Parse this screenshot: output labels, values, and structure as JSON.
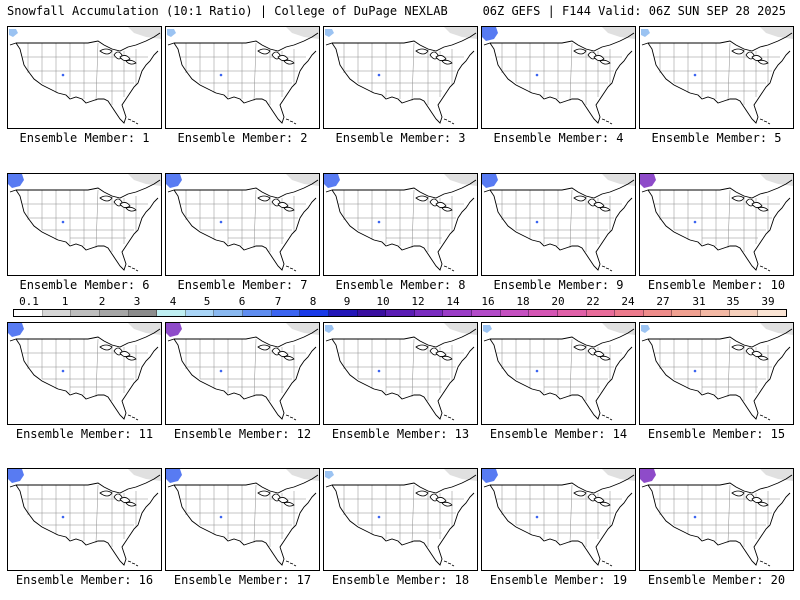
{
  "header": {
    "title": "Snowfall Accumulation (10:1 Ratio) | College of DuPage NEXLAB",
    "run_info": "06Z GEFS | F144 Valid: 06Z SUN SEP 28 2025"
  },
  "panels": [
    {
      "label": "Ensemble Member: 1",
      "snow": "light"
    },
    {
      "label": "Ensemble Member: 2",
      "snow": "light"
    },
    {
      "label": "Ensemble Member: 3",
      "snow": "light"
    },
    {
      "label": "Ensemble Member: 4",
      "snow": "moderate"
    },
    {
      "label": "Ensemble Member: 5",
      "snow": "light"
    },
    {
      "label": "Ensemble Member: 6",
      "snow": "moderate"
    },
    {
      "label": "Ensemble Member: 7",
      "snow": "moderate"
    },
    {
      "label": "Ensemble Member: 8",
      "snow": "moderate"
    },
    {
      "label": "Ensemble Member: 9",
      "snow": "moderate"
    },
    {
      "label": "Ensemble Member: 10",
      "snow": "heavy"
    },
    {
      "label": "Ensemble Member: 11",
      "snow": "moderate"
    },
    {
      "label": "Ensemble Member: 12",
      "snow": "heavy"
    },
    {
      "label": "Ensemble Member: 13",
      "snow": "light"
    },
    {
      "label": "Ensemble Member: 14",
      "snow": "light"
    },
    {
      "label": "Ensemble Member: 15",
      "snow": "light"
    },
    {
      "label": "Ensemble Member: 16",
      "snow": "moderate"
    },
    {
      "label": "Ensemble Member: 17",
      "snow": "moderate"
    },
    {
      "label": "Ensemble Member: 18",
      "snow": "light"
    },
    {
      "label": "Ensemble Member: 19",
      "snow": "moderate"
    },
    {
      "label": "Ensemble Member: 20",
      "snow": "heavy"
    }
  ],
  "color_scale": {
    "labels": [
      "0.1",
      "1",
      "2",
      "3",
      "4",
      "5",
      "6",
      "7",
      "8",
      "9",
      "10",
      "12",
      "14",
      "16",
      "18",
      "20",
      "22",
      "24",
      "27",
      "31",
      "35",
      "39"
    ],
    "colors": [
      "#ffffff",
      "#d6d6d6",
      "#bdbdbd",
      "#a5a5a5",
      "#8c8c8c",
      "#bfeff2",
      "#a9d5f7",
      "#89b8f0",
      "#5f8df0",
      "#3b64f0",
      "#1a3ae8",
      "#2316b8",
      "#3a0fa0",
      "#5a1cb4",
      "#7a2cc0",
      "#9a3cc6",
      "#b24ac8",
      "#c44fc0",
      "#d455b4",
      "#e060a8",
      "#e86c9a",
      "#ec7a8c",
      "#ee8c8a",
      "#f0a090",
      "#f3b8a4",
      "#f6d0bc",
      "#fae4d4"
    ]
  }
}
